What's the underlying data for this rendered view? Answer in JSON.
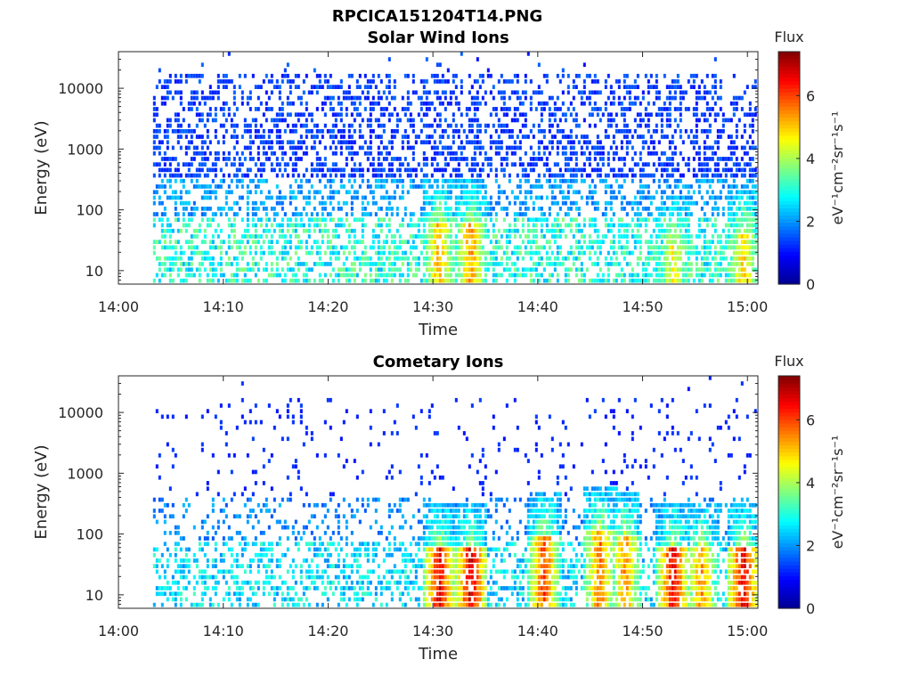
{
  "figure_title": "RPCICA151204T14.PNG",
  "colors": {
    "colormap": [
      "#00008f",
      "#0000ff",
      "#0080ff",
      "#00ffff",
      "#80ff80",
      "#ffff00",
      "#ff8000",
      "#ff0000",
      "#800000"
    ],
    "axis": "#262626",
    "background": "#ffffff"
  },
  "chart_data": [
    {
      "type": "heatmap",
      "title": "Solar Wind Ions",
      "xlabel": "Time",
      "ylabel": "Energy (eV)",
      "x_ticks": [
        "14:00",
        "14:10",
        "14:20",
        "14:30",
        "14:40",
        "14:50",
        "15:00"
      ],
      "x_range_minutes": [
        0,
        61
      ],
      "y_scale": "log",
      "y_ticks": [
        "10",
        "100",
        "1000",
        "10000"
      ],
      "y_range": [
        6,
        40000
      ],
      "data_start_minute": 3.3,
      "data_end_minute": 60.8,
      "colorbar": {
        "title": "Flux",
        "label": "eV⁻¹cm⁻²sr⁻¹s⁻¹",
        "range": [
          0,
          7.4
        ],
        "ticks": [
          "0",
          "2",
          "4",
          "6"
        ]
      },
      "enhancements": [
        {
          "time_min": 30.5,
          "energy_peak_eV": 40,
          "max_flux": 5.8
        },
        {
          "time_min": 33.5,
          "energy_peak_eV": 40,
          "max_flux": 6.0
        },
        {
          "time_min": 52.8,
          "energy_peak_eV": 20,
          "max_flux": 5.2
        },
        {
          "time_min": 59.5,
          "energy_peak_eV": 30,
          "max_flux": 5.6
        }
      ]
    },
    {
      "type": "heatmap",
      "title": "Cometary Ions",
      "xlabel": "Time",
      "ylabel": "Energy (eV)",
      "x_ticks": [
        "14:00",
        "14:10",
        "14:20",
        "14:30",
        "14:40",
        "14:50",
        "15:00"
      ],
      "x_range_minutes": [
        0,
        61
      ],
      "y_scale": "log",
      "y_ticks": [
        "10",
        "100",
        "1000",
        "10000"
      ],
      "y_range": [
        6,
        40000
      ],
      "data_start_minute": 3.3,
      "data_end_minute": 60.8,
      "colorbar": {
        "title": "Flux",
        "label": "eV⁻¹cm⁻²sr⁻¹s⁻¹",
        "range": [
          0,
          7.4
        ],
        "ticks": [
          "0",
          "2",
          "4",
          "6"
        ]
      },
      "enhancements": [
        {
          "time_min": 30.5,
          "energy_peak_eV": 40,
          "max_flux": 7.2
        },
        {
          "time_min": 33.5,
          "energy_peak_eV": 40,
          "max_flux": 7.4
        },
        {
          "time_min": 40.5,
          "energy_peak_eV": 60,
          "max_flux": 6.6
        },
        {
          "time_min": 45.8,
          "energy_peak_eV": 80,
          "max_flux": 6.2
        },
        {
          "time_min": 48.2,
          "energy_peak_eV": 60,
          "max_flux": 6.0
        },
        {
          "time_min": 52.8,
          "energy_peak_eV": 40,
          "max_flux": 7.2
        },
        {
          "time_min": 55.5,
          "energy_peak_eV": 40,
          "max_flux": 6.0
        },
        {
          "time_min": 59.5,
          "energy_peak_eV": 40,
          "max_flux": 7.3
        }
      ]
    }
  ]
}
